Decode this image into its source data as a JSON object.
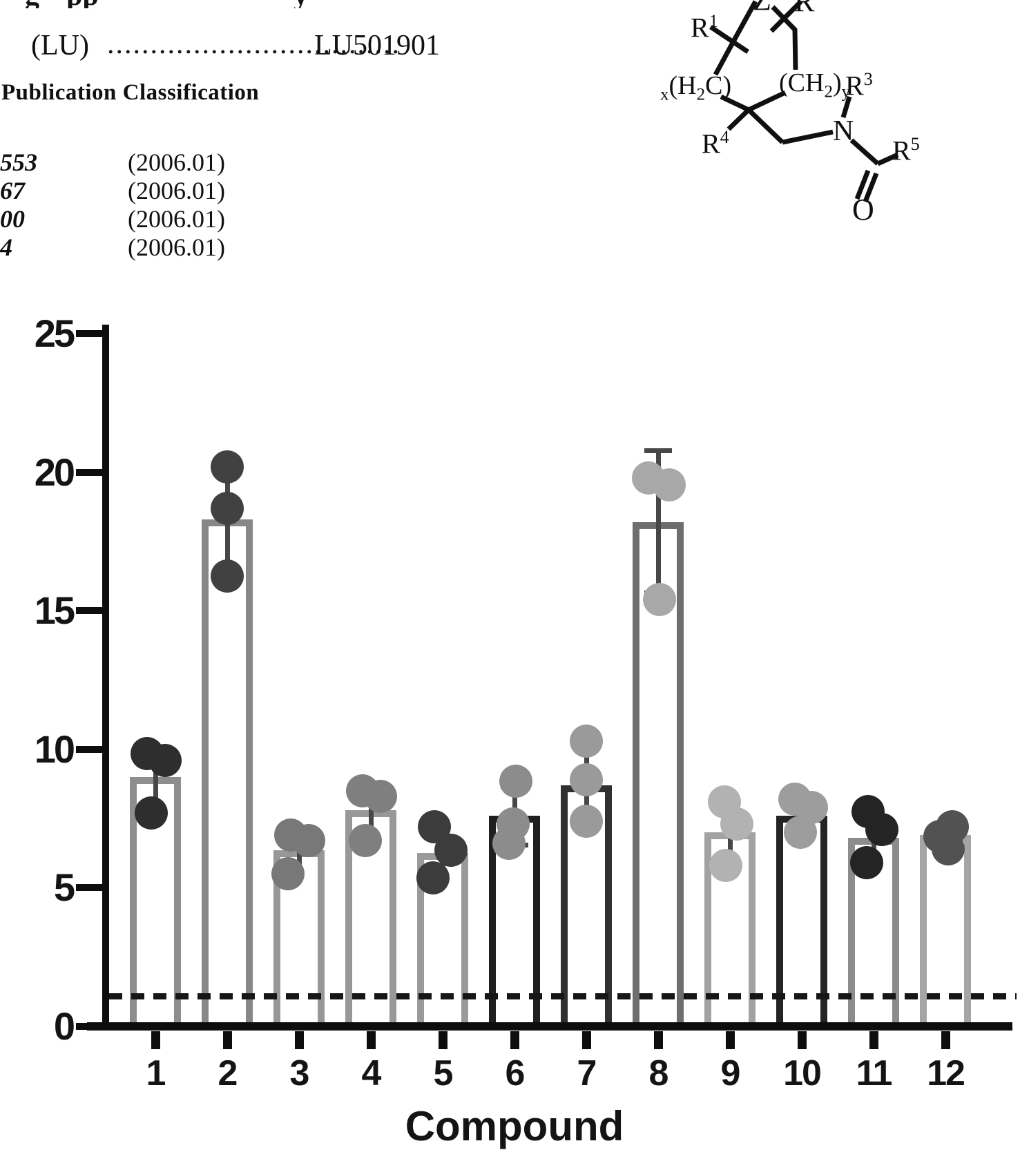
{
  "top_left": {
    "clipped_line_fragments": [
      "g",
      "pp",
      "y"
    ],
    "lu_entry": {
      "label": "(LU)",
      "dots": "..................................",
      "value": "LU501901"
    },
    "section_title": "Publication Classification",
    "rows": [
      {
        "code": "553",
        "year": "(2006.01)"
      },
      {
        "code": "67",
        "year": "(2006.01)"
      },
      {
        "code": "00",
        "year": "(2006.01)"
      },
      {
        "code": "4",
        "year": "(2006.01)"
      }
    ]
  },
  "structure": {
    "clipped_z": "Z",
    "clipped_r": "R",
    "r1": {
      "base": "R",
      "sup": "1"
    },
    "h2c": {
      "sub_pre": "x",
      "p1": "(H",
      "sub1": "2",
      "p2": "C)"
    },
    "ch2y": {
      "p1": "(CH",
      "sub1": "2",
      "p2": ")",
      "sub2": "y"
    },
    "r3": {
      "base": "R",
      "sup": "3"
    },
    "r4": {
      "base": "R",
      "sup": "4"
    },
    "n": "N",
    "r5": {
      "base": "R",
      "sup": "5"
    },
    "o": "O"
  },
  "chart_data": {
    "type": "bar",
    "title": "",
    "xlabel": "Compound",
    "ylabel": "",
    "ylim": [
      0,
      25
    ],
    "yticks": [
      0,
      5,
      10,
      15,
      20,
      25
    ],
    "grid": false,
    "legend": "none",
    "dashed_reference_line": 1.1,
    "dot_size": 48,
    "error_color": "#474747",
    "categories": [
      "1",
      "2",
      "3",
      "4",
      "5",
      "6",
      "7",
      "8",
      "9",
      "10",
      "11",
      "12"
    ],
    "bars": [
      {
        "label": "1",
        "mean": 9.0,
        "sd": 1.2,
        "points": [
          9.85,
          9.6,
          7.7
        ],
        "point_dx": [
          -12,
          14,
          -6
        ],
        "outline": "#8e8e8e",
        "dot": "#2e2e2e",
        "caps": false
      },
      {
        "label": "2",
        "mean": 18.3,
        "sd": 2.0,
        "points": [
          20.2,
          18.7,
          16.25
        ],
        "point_dx": [
          0,
          0,
          0
        ],
        "outline": "#878787",
        "dot": "#414141",
        "caps": false
      },
      {
        "label": "3",
        "mean": 6.35,
        "sd": 0.75,
        "points": [
          6.9,
          6.7,
          5.5
        ],
        "point_dx": [
          -12,
          14,
          -16
        ],
        "outline": "#979797",
        "dot": "#787878",
        "caps": false
      },
      {
        "label": "4",
        "mean": 7.8,
        "sd": 1.0,
        "points": [
          8.5,
          8.3,
          6.7
        ],
        "point_dx": [
          -12,
          14,
          -8
        ],
        "outline": "#989898",
        "dot": "#7f7f7f",
        "caps": false
      },
      {
        "label": "5",
        "mean": 6.25,
        "sd": 0.92,
        "points": [
          7.2,
          6.35,
          5.35
        ],
        "point_dx": [
          -12,
          12,
          -14
        ],
        "outline": "#9a9a9a",
        "dot": "#3c3c3c",
        "caps": false
      },
      {
        "label": "6",
        "mean": 7.6,
        "sd": 1.15,
        "points": [
          8.85,
          7.3,
          6.6
        ],
        "point_dx": [
          2,
          -2,
          -8
        ],
        "outline": "#1f1f1f",
        "dot": "#8c8c8c",
        "caps": true
      },
      {
        "label": "7",
        "mean": 8.7,
        "sd": 1.45,
        "points": [
          10.3,
          8.9,
          7.4
        ],
        "point_dx": [
          0,
          0,
          0
        ],
        "outline": "#303030",
        "dot": "#9a9a9a",
        "caps": false
      },
      {
        "label": "8",
        "mean": 18.2,
        "sd": 2.65,
        "points": [
          19.8,
          19.55,
          15.4
        ],
        "point_dx": [
          -14,
          16,
          2
        ],
        "outline": "#6e6e6e",
        "dot": "#a8a8a8",
        "caps": true
      },
      {
        "label": "9",
        "mean": 7.0,
        "sd": 1.15,
        "points": [
          8.1,
          7.3,
          5.8
        ],
        "point_dx": [
          -8,
          10,
          -6
        ],
        "outline": "#a2a2a2",
        "dot": "#b2b2b2",
        "caps": false
      },
      {
        "label": "10",
        "mean": 7.6,
        "sd": 0.62,
        "points": [
          8.2,
          7.9,
          7.0
        ],
        "point_dx": [
          -10,
          14,
          -2
        ],
        "outline": "#242424",
        "dot": "#9d9d9d",
        "caps": true
      },
      {
        "label": "11",
        "mean": 6.8,
        "sd": 0.95,
        "points": [
          7.75,
          7.1,
          5.9
        ],
        "point_dx": [
          -8,
          12,
          -10
        ],
        "outline": "#8c8c8c",
        "dot": "#242424",
        "caps": false
      },
      {
        "label": "12",
        "mean": 6.9,
        "sd": 0.42,
        "points": [
          7.2,
          6.85,
          6.4
        ],
        "point_dx": [
          10,
          -8,
          4
        ],
        "outline": "#a5a5a5",
        "dot": "#525252",
        "caps": false
      }
    ]
  }
}
